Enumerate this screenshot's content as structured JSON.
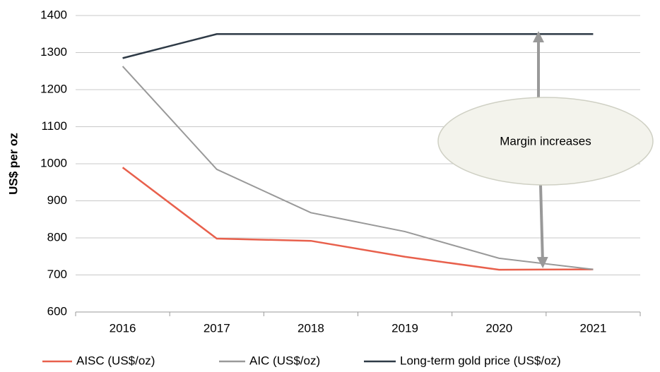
{
  "chart_data": {
    "type": "line",
    "y_label": "US$ per oz",
    "categories": [
      "2016",
      "2017",
      "2018",
      "2019",
      "2020",
      "2021"
    ],
    "series": [
      {
        "name": "AISC (US$/oz)",
        "color": "#e8604c",
        "values": [
          990,
          798,
          792,
          749,
          714,
          715
        ]
      },
      {
        "name": "AIC (US$/oz)",
        "color": "#999999",
        "values": [
          1263,
          985,
          868,
          817,
          745,
          715
        ]
      },
      {
        "name": "Long-term gold price (US$/oz)",
        "color": "#2e3a46",
        "values": [
          1285,
          1350,
          1350,
          1350,
          1350,
          1350
        ]
      }
    ],
    "ylim": [
      600,
      1400
    ],
    "yticks": [
      600,
      700,
      800,
      900,
      1000,
      1100,
      1200,
      1300,
      1400
    ],
    "grid": true,
    "annotation": "Margin increases"
  }
}
